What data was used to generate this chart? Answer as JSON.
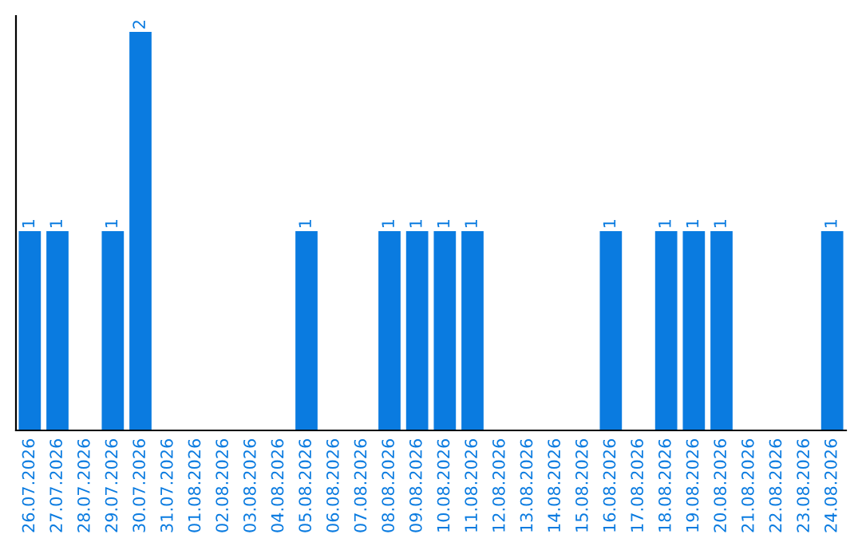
{
  "chart_data": {
    "type": "bar",
    "categories": [
      "26.07.2026",
      "27.07.2026",
      "28.07.2026",
      "29.07.2026",
      "30.07.2026",
      "31.07.2026",
      "01.08.2026",
      "02.08.2026",
      "03.08.2026",
      "04.08.2026",
      "05.08.2026",
      "06.08.2026",
      "07.08.2026",
      "08.08.2026",
      "09.08.2026",
      "10.08.2026",
      "11.08.2026",
      "12.08.2026",
      "13.08.2026",
      "14.08.2026",
      "15.08.2026",
      "16.08.2026",
      "17.08.2026",
      "18.08.2026",
      "19.08.2026",
      "20.08.2026",
      "21.08.2026",
      "22.08.2026",
      "23.08.2026",
      "24.08.2026"
    ],
    "values": [
      1,
      1,
      0,
      1,
      2,
      0,
      0,
      0,
      0,
      0,
      1,
      0,
      0,
      1,
      1,
      1,
      1,
      0,
      0,
      0,
      0,
      1,
      0,
      1,
      1,
      1,
      0,
      0,
      0,
      1
    ],
    "value_labels": [
      "1",
      "1",
      null,
      "1",
      "2",
      null,
      null,
      null,
      null,
      null,
      "1",
      null,
      null,
      "1",
      "1",
      "1",
      "1",
      null,
      null,
      null,
      null,
      "1",
      null,
      "1",
      "1",
      "1",
      null,
      null,
      null,
      "1"
    ],
    "color": "#0a7be0",
    "ylim": [
      0,
      2.08
    ],
    "tick_labels": "x",
    "grid": false,
    "legend": false
  }
}
